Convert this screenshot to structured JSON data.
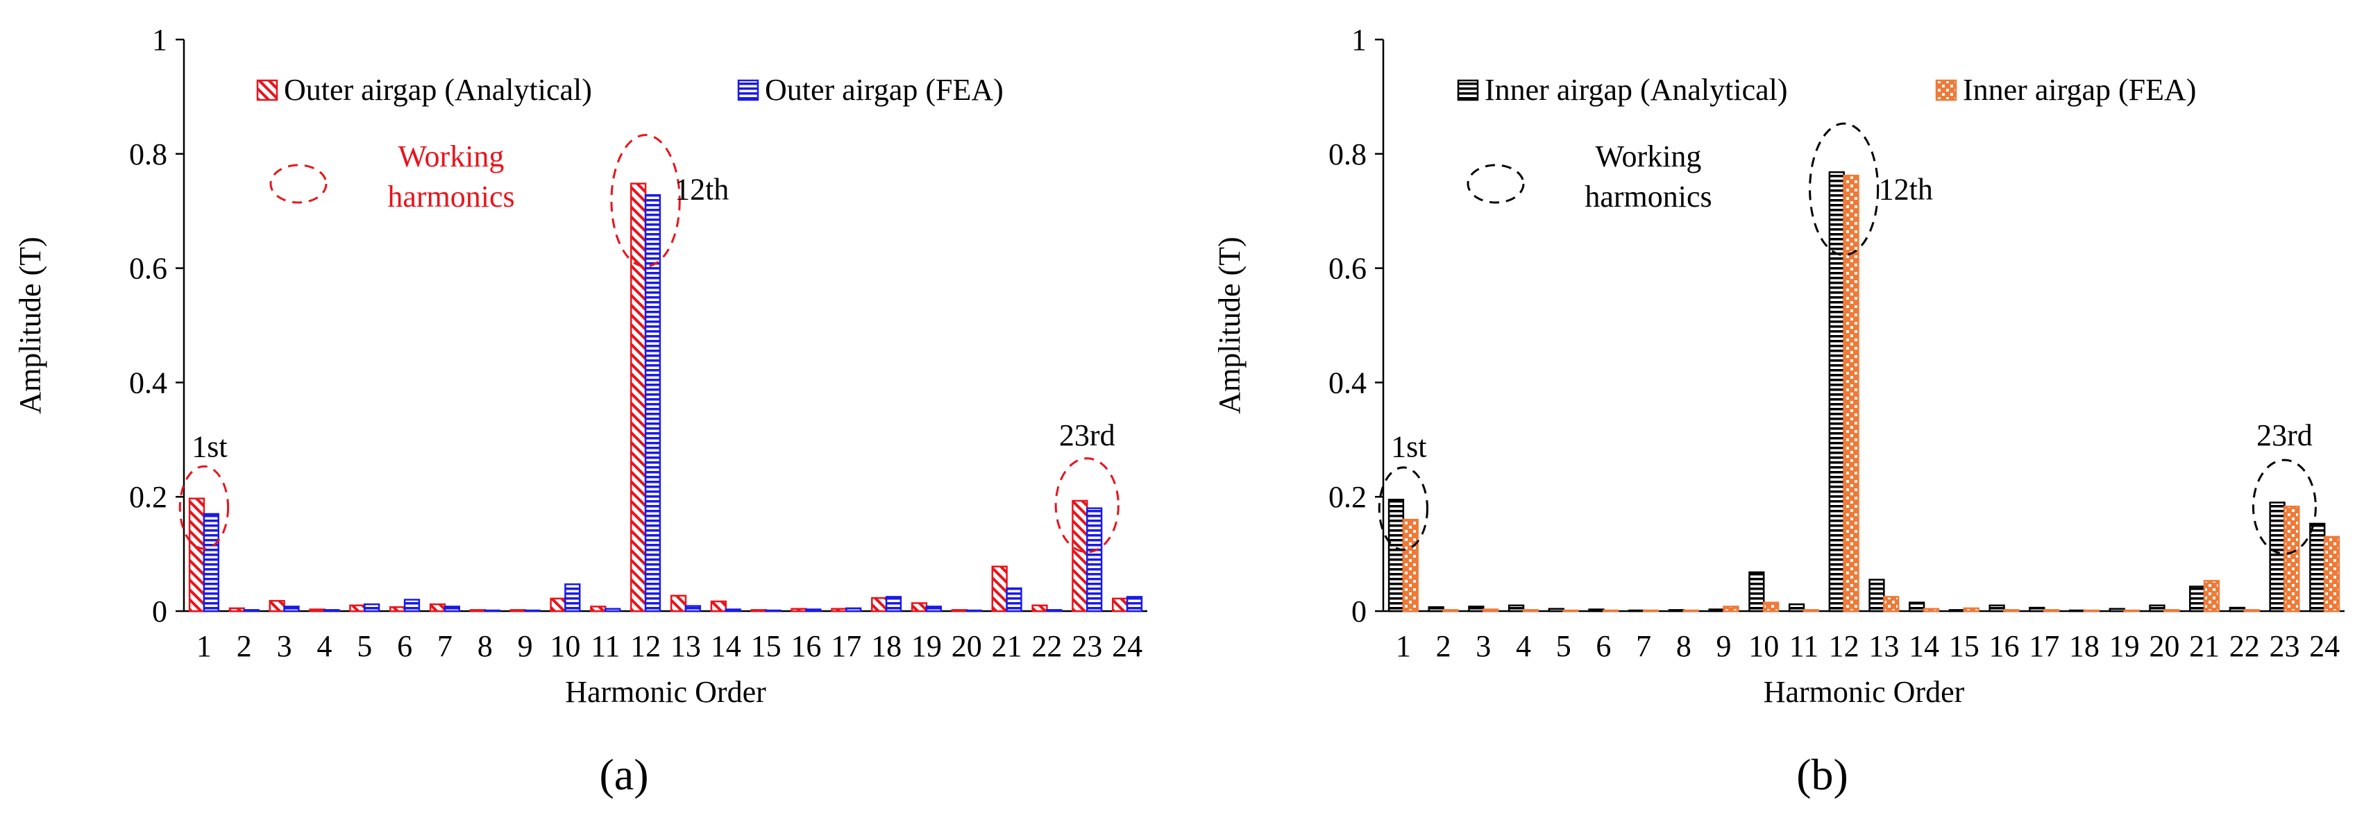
{
  "colors": {
    "red": "#e8141c",
    "blue": "#1a1ae6",
    "black": "#000000",
    "orange": "#ee7a38"
  },
  "chart_data": [
    {
      "panel_label": "(a)",
      "type": "bar",
      "xlabel": "Harmonic Order",
      "ylabel": "Amplitude (T)",
      "ylim": [
        0,
        1
      ],
      "yticks": [
        "0",
        "0.2",
        "0.4",
        "0.6",
        "0.8",
        "1"
      ],
      "categories": [
        "1",
        "2",
        "3",
        "4",
        "5",
        "6",
        "7",
        "8",
        "9",
        "10",
        "11",
        "12",
        "13",
        "14",
        "15",
        "16",
        "17",
        "18",
        "19",
        "20",
        "21",
        "22",
        "23",
        "24"
      ],
      "series": [
        {
          "name": "Outer airgap (Analytical)",
          "color": "#e8141c",
          "pattern": "diagonal",
          "values": [
            0.197,
            0.005,
            0.018,
            0.003,
            0.01,
            0.007,
            0.012,
            0.002,
            0.002,
            0.022,
            0.008,
            0.748,
            0.027,
            0.017,
            0.002,
            0.004,
            0.004,
            0.023,
            0.014,
            0.002,
            0.078,
            0.01,
            0.193,
            0.022
          ]
        },
        {
          "name": "Outer airgap (FEA)",
          "color": "#1a1ae6",
          "pattern": "horizontal",
          "values": [
            0.17,
            0.002,
            0.008,
            0.002,
            0.012,
            0.02,
            0.008,
            0.001,
            0.001,
            0.047,
            0.004,
            0.728,
            0.009,
            0.003,
            0.001,
            0.003,
            0.005,
            0.025,
            0.008,
            0.001,
            0.04,
            0.002,
            0.18,
            0.025
          ]
        }
      ],
      "annotations": {
        "working_harmonics_label": "Working\nharmonics",
        "working_color": "#e8141c",
        "label_1st": "1st",
        "label_12th": "12th",
        "label_23rd": "23rd"
      }
    },
    {
      "panel_label": "(b)",
      "type": "bar",
      "xlabel": "Harmonic Order",
      "ylabel": "Amplitude (T)",
      "ylim": [
        0,
        1
      ],
      "yticks": [
        "0",
        "0.2",
        "0.4",
        "0.6",
        "0.8",
        "1"
      ],
      "categories": [
        "1",
        "2",
        "3",
        "4",
        "5",
        "6",
        "7",
        "8",
        "9",
        "10",
        "11",
        "12",
        "13",
        "14",
        "15",
        "16",
        "17",
        "18",
        "19",
        "20",
        "21",
        "22",
        "23",
        "24"
      ],
      "series": [
        {
          "name": "Inner airgap (Analytical)",
          "color": "#000000",
          "pattern": "horizontal",
          "values": [
            0.195,
            0.007,
            0.008,
            0.01,
            0.004,
            0.003,
            0.001,
            0.002,
            0.003,
            0.068,
            0.012,
            0.768,
            0.055,
            0.015,
            0.002,
            0.01,
            0.006,
            0.001,
            0.004,
            0.01,
            0.043,
            0.006,
            0.19,
            0.153
          ]
        },
        {
          "name": "Inner airgap (FEA)",
          "color": "#ee7a38",
          "pattern": "checker",
          "values": [
            0.16,
            0.002,
            0.003,
            0.002,
            0.001,
            0.001,
            0.001,
            0.001,
            0.008,
            0.015,
            0.002,
            0.762,
            0.025,
            0.004,
            0.005,
            0.002,
            0.002,
            0.001,
            0.001,
            0.002,
            0.053,
            0.002,
            0.183,
            0.13
          ]
        }
      ],
      "annotations": {
        "working_harmonics_label": "Working\nharmonics",
        "working_color": "#000000",
        "label_1st": "1st",
        "label_12th": "12th",
        "label_23rd": "23rd"
      }
    }
  ]
}
